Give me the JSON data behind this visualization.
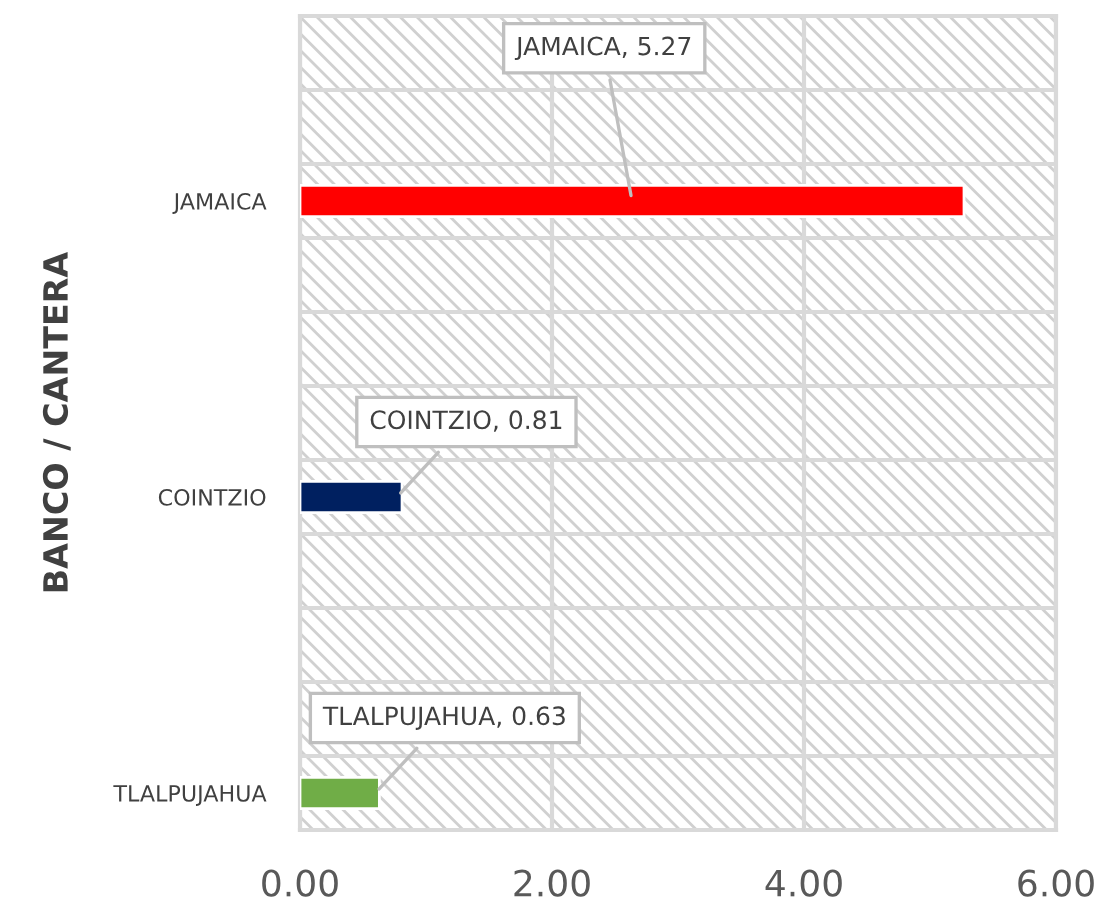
{
  "chart_data": {
    "type": "bar",
    "orientation": "horizontal",
    "ylabel": "BANCO / CANTERA",
    "categories": [
      null,
      null,
      "JAMAICA",
      null,
      null,
      null,
      "COINTZIO",
      null,
      null,
      null,
      "TLALPUJAHUA"
    ],
    "values": [
      null,
      null,
      5.27,
      null,
      null,
      null,
      0.81,
      null,
      null,
      null,
      0.63
    ],
    "colors": [
      "#ff0000",
      "#ff0000",
      "#ff0000",
      "#002060",
      "#002060",
      "#002060",
      "#002060",
      "#70ad47",
      "#70ad47",
      "#70ad47",
      "#70ad47"
    ],
    "value_labels": [
      null,
      null,
      "JAMAICA, 5.27",
      null,
      null,
      null,
      "COINTZIO, 0.81",
      null,
      null,
      null,
      "TLALPUJAHUA, 0.63"
    ],
    "xlim": [
      0,
      6
    ],
    "xticks": [
      {
        "value": 0,
        "label": "0.00"
      },
      {
        "value": 2,
        "label": "2.00"
      },
      {
        "value": 4,
        "label": "4.00"
      },
      {
        "value": 6,
        "label": "6.00"
      }
    ],
    "grid": true,
    "legend": false
  }
}
